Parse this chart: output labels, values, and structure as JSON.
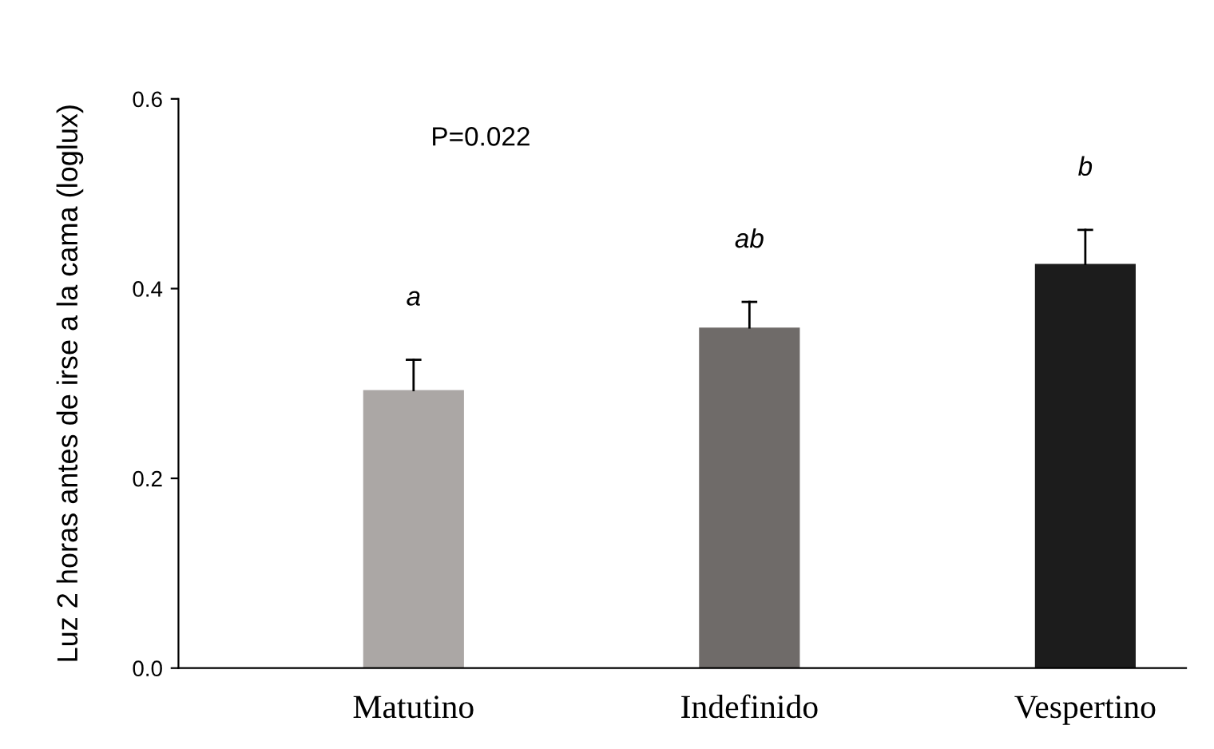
{
  "chart_data": {
    "type": "bar",
    "ylabel": "Luz 2 horas antes de irse a la cama (loglux)",
    "categories": [
      "Matutino",
      "Indefinido",
      "Vespertino"
    ],
    "values": [
      0.293,
      0.359,
      0.426
    ],
    "colors": [
      "#aba7a5",
      "#6f6b69",
      "#1c1c1c"
    ],
    "errors": [
      [
        0.293,
        0.325
      ],
      [
        0.359,
        0.386
      ],
      [
        0.426,
        0.462
      ]
    ],
    "ylim": [
      0,
      0.6
    ],
    "yticks": [
      {
        "value": 0,
        "label": "0.0"
      },
      {
        "value": 0.2,
        "label": "0.2"
      },
      {
        "value": 0.4,
        "label": "0.4"
      },
      {
        "value": 0.6,
        "label": "0.6"
      }
    ],
    "grid": false,
    "legend": false,
    "annotations": [
      "a",
      "ab",
      "b",
      "P=0.022"
    ]
  }
}
